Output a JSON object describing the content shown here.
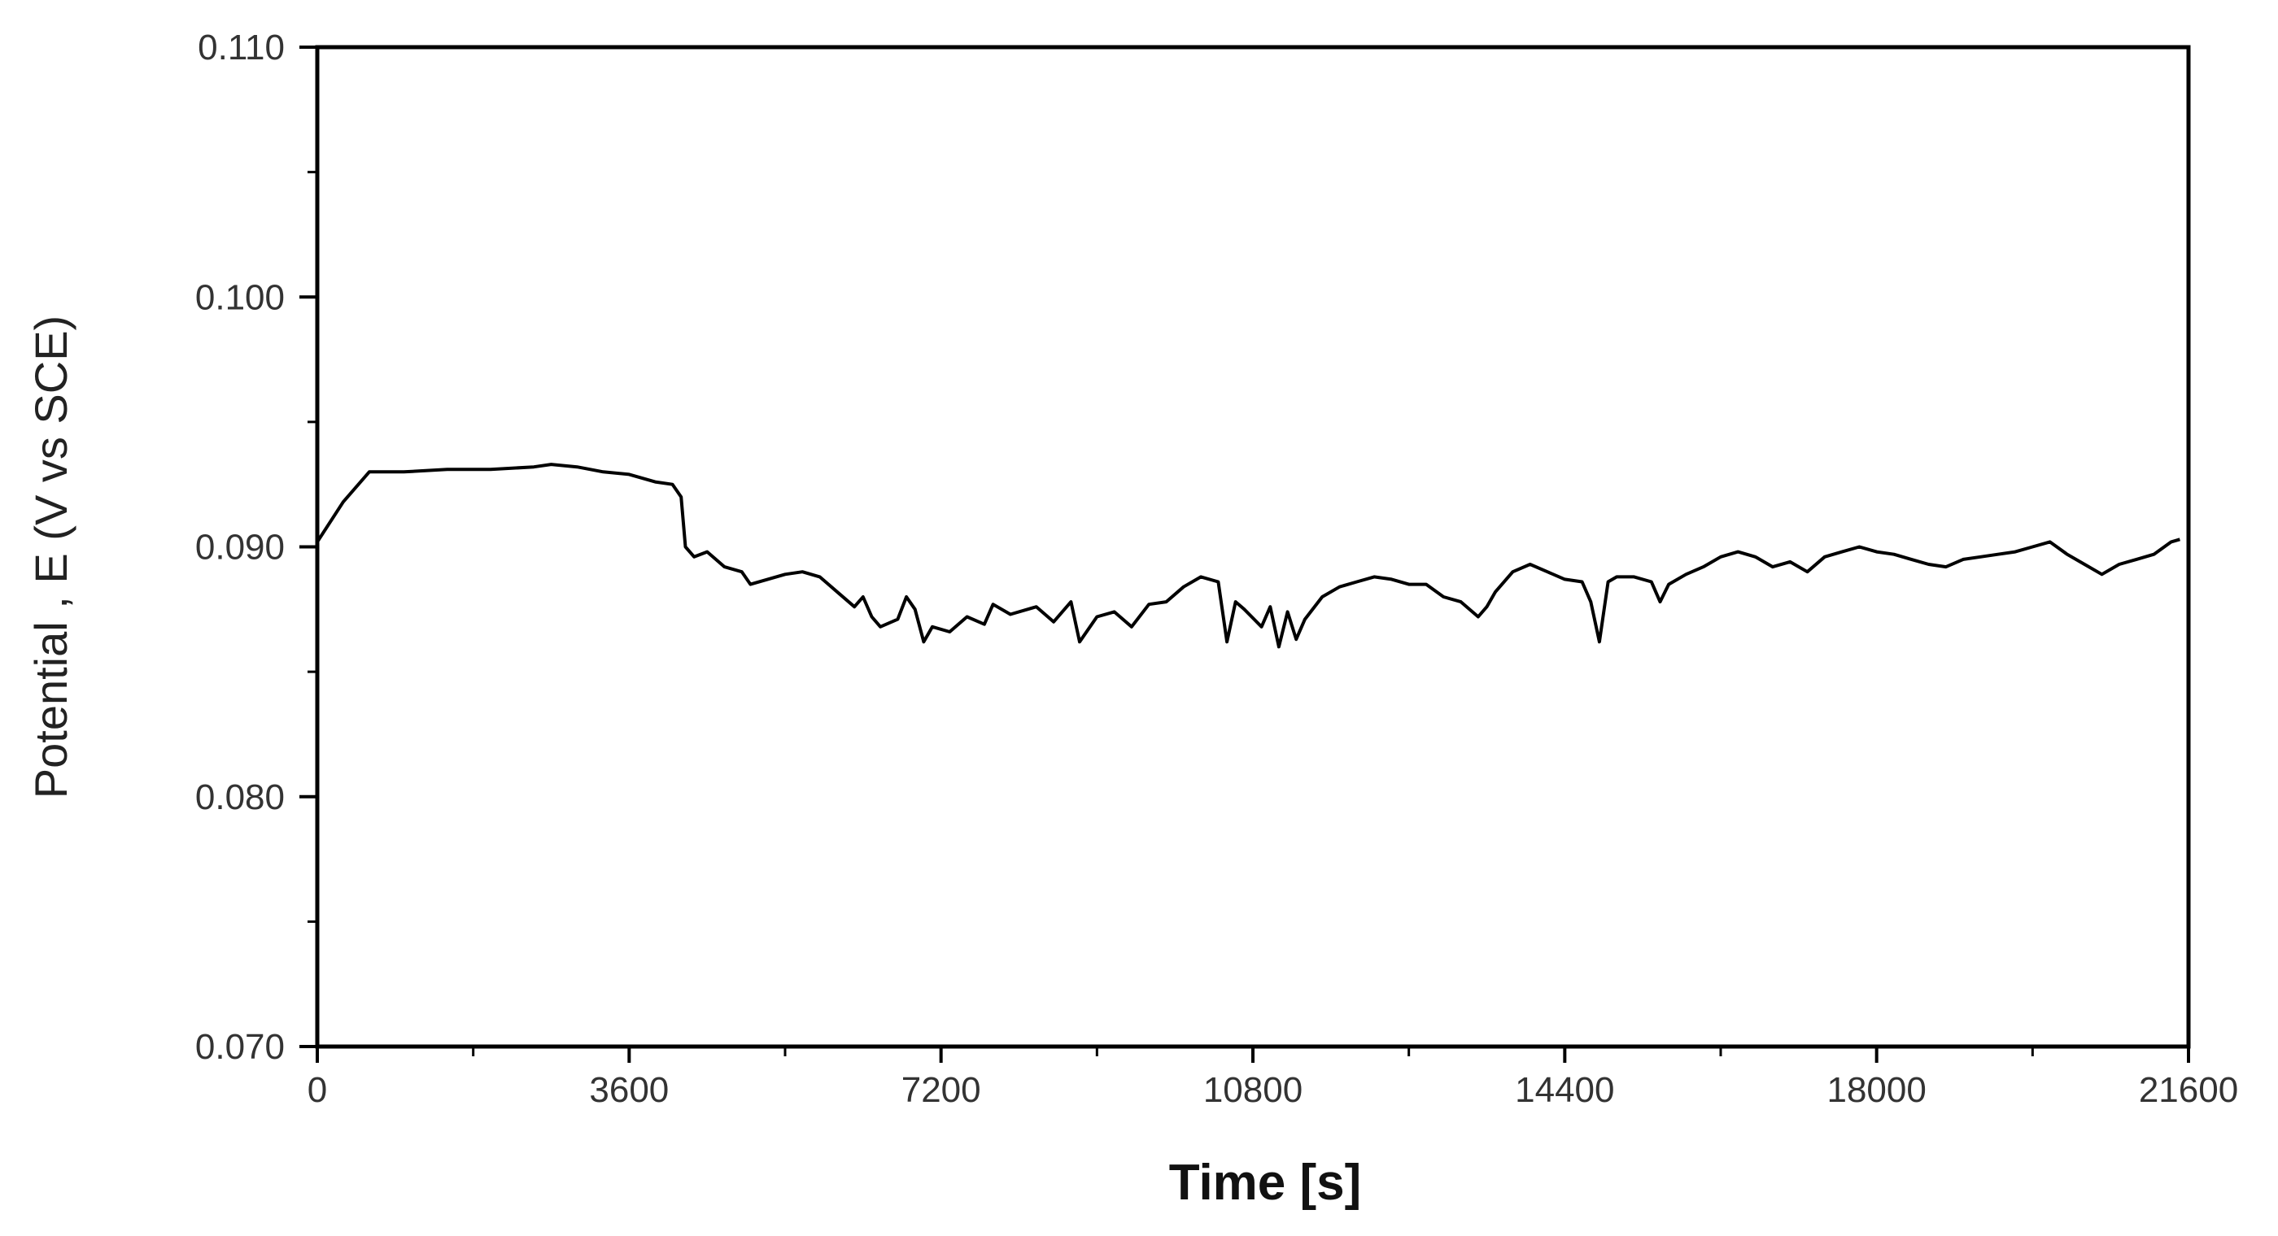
{
  "chart_data": {
    "type": "line",
    "title": "",
    "xlabel": "Time [s]",
    "ylabel": "Potential , E (V vs SCE)",
    "xlim": [
      0,
      21600
    ],
    "ylim": [
      0.07,
      0.11
    ],
    "x_ticks": [
      0,
      3600,
      7200,
      10800,
      14400,
      18000,
      21600
    ],
    "x_tick_labels": [
      "0",
      "3600",
      "7200",
      "10800",
      "14400",
      "18000",
      "21600"
    ],
    "y_ticks": [
      0.07,
      0.08,
      0.09,
      0.1,
      0.11
    ],
    "y_tick_labels": [
      "0.070",
      "0.080",
      "0.090",
      "0.100",
      "0.110"
    ],
    "grid": false,
    "legend": "none",
    "colors": {
      "line": "#000000",
      "axis": "#000000",
      "text": "#333333"
    },
    "series": [
      {
        "x": [
          0,
          300,
          600,
          800,
          1000,
          1500,
          2000,
          2500,
          2700,
          3000,
          3300,
          3600,
          3900,
          4100,
          4200,
          4250,
          4350,
          4500,
          4700,
          4900,
          5000,
          5200,
          5400,
          5600,
          5800,
          6000,
          6200,
          6300,
          6400,
          6500,
          6700,
          6800,
          6900,
          7000,
          7100,
          7300,
          7500,
          7700,
          7800,
          8000,
          8200,
          8300,
          8500,
          8700,
          8800,
          9000,
          9200,
          9400,
          9600,
          9800,
          10000,
          10200,
          10400,
          10500,
          10600,
          10700,
          10900,
          11000,
          11100,
          11200,
          11300,
          11400,
          11600,
          11800,
          12000,
          12200,
          12400,
          12600,
          12800,
          13000,
          13200,
          13400,
          13500,
          13600,
          13800,
          14000,
          14200,
          14400,
          14600,
          14700,
          14800,
          14900,
          15000,
          15200,
          15400,
          15500,
          15600,
          15800,
          16000,
          16200,
          16400,
          16600,
          16800,
          17000,
          17200,
          17400,
          17600,
          17800,
          18000,
          18200,
          18400,
          18600,
          18800,
          19000,
          19200,
          19400,
          19600,
          19800,
          20000,
          20200,
          20400,
          20600,
          20800,
          21000,
          21200,
          21400,
          21500
        ],
        "y": [
          0.0902,
          0.0918,
          0.093,
          0.093,
          0.093,
          0.0931,
          0.0931,
          0.0932,
          0.0933,
          0.0932,
          0.093,
          0.0929,
          0.0926,
          0.0925,
          0.092,
          0.09,
          0.0896,
          0.0898,
          0.0892,
          0.089,
          0.0885,
          0.0887,
          0.0889,
          0.089,
          0.0888,
          0.0882,
          0.0876,
          0.088,
          0.0872,
          0.0868,
          0.0871,
          0.088,
          0.0875,
          0.0862,
          0.0868,
          0.0866,
          0.0872,
          0.0869,
          0.0877,
          0.0873,
          0.0875,
          0.0876,
          0.087,
          0.0878,
          0.0862,
          0.0872,
          0.0874,
          0.0868,
          0.0877,
          0.0878,
          0.0884,
          0.0888,
          0.0886,
          0.0862,
          0.0878,
          0.0875,
          0.0868,
          0.0876,
          0.086,
          0.0874,
          0.0863,
          0.0871,
          0.088,
          0.0884,
          0.0886,
          0.0888,
          0.0887,
          0.0885,
          0.0885,
          0.088,
          0.0878,
          0.0872,
          0.0876,
          0.0882,
          0.089,
          0.0893,
          0.089,
          0.0887,
          0.0886,
          0.0878,
          0.0862,
          0.0886,
          0.0888,
          0.0888,
          0.0886,
          0.0878,
          0.0885,
          0.0889,
          0.0892,
          0.0896,
          0.0898,
          0.0896,
          0.0892,
          0.0894,
          0.089,
          0.0896,
          0.0898,
          0.09,
          0.0898,
          0.0897,
          0.0895,
          0.0893,
          0.0892,
          0.0895,
          0.0896,
          0.0897,
          0.0898,
          0.09,
          0.0902,
          0.0897,
          0.0893,
          0.0889,
          0.0893,
          0.0895,
          0.0897,
          0.0902,
          0.0903
        ]
      }
    ]
  }
}
